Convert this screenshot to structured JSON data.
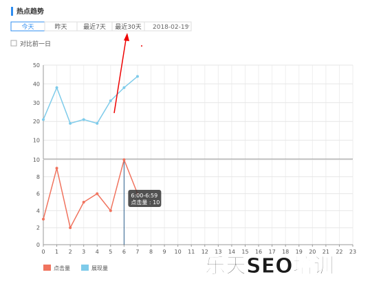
{
  "header": {
    "title": "热点趋势"
  },
  "tabs": [
    "今天",
    "昨天",
    "最近7天",
    "最近30天"
  ],
  "date": "2018-02-19",
  "compare": "对比前一日",
  "watermark": "乐天SEO培训",
  "chart_data": [
    {
      "type": "line",
      "x": [
        0,
        1,
        2,
        3,
        4,
        5,
        6,
        7
      ],
      "xlim": [
        0,
        23
      ],
      "series": [
        {
          "name": "展现量",
          "color": "#7ecbea",
          "values": [
            21,
            38,
            19,
            21,
            19,
            31,
            38,
            44
          ]
        }
      ],
      "ylim": [
        0,
        50
      ],
      "yticks": [
        10,
        20,
        30,
        40,
        50
      ],
      "grid": true
    },
    {
      "type": "line",
      "x": [
        0,
        1,
        2,
        3,
        4,
        5,
        6,
        7
      ],
      "xlim": [
        0,
        23
      ],
      "xticks": [
        0,
        1,
        2,
        3,
        4,
        5,
        6,
        7,
        8,
        9,
        10,
        11,
        12,
        13,
        14,
        15,
        16,
        17,
        18,
        19,
        20,
        21,
        22,
        23
      ],
      "series": [
        {
          "name": "点击量",
          "color": "#f0735e",
          "values": [
            3,
            9,
            2,
            5,
            6,
            4,
            10,
            6
          ]
        }
      ],
      "ylim": [
        0,
        10
      ],
      "yticks": [
        0,
        2,
        4,
        6,
        8,
        10
      ],
      "grid": true,
      "tooltip": {
        "x": 6,
        "title": "6:00-6:59",
        "text": "点击量 : 10"
      }
    }
  ]
}
